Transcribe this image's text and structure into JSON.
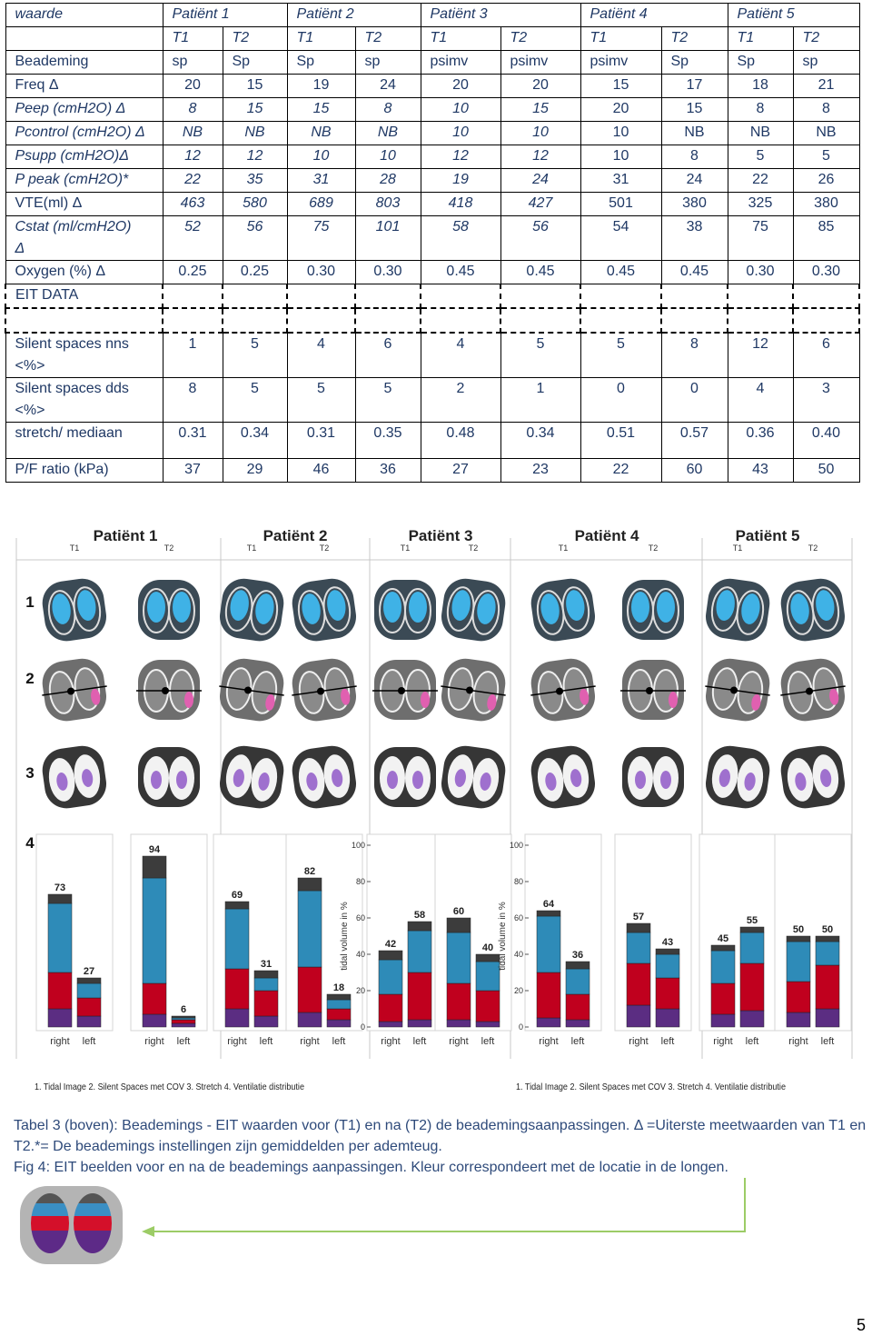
{
  "table": {
    "header": [
      "waarde",
      "Patiënt 1",
      "Patiënt 2",
      "Patiënt 3",
      "Patiënt 4",
      "Patiënt 5"
    ],
    "subheader": [
      "T1",
      "T2",
      "T1",
      "T2",
      "T1",
      "T2",
      "T1",
      "T2",
      "T1",
      "T2"
    ],
    "rows": [
      [
        "Beademing",
        "sp",
        "Sp",
        "Sp",
        "sp",
        "psimv",
        "psimv",
        "psimv",
        "Sp",
        "Sp",
        "sp"
      ],
      [
        "Freq  Δ",
        "20",
        "15",
        "19",
        "24",
        "20",
        "20",
        "15",
        "17",
        "18",
        "21"
      ],
      [
        "Peep (cmH2O)  Δ",
        "8",
        "15",
        "15",
        "8",
        "10",
        "15",
        "20",
        "15",
        "8",
        "8"
      ],
      [
        "Pcontrol (cmH2O) Δ",
        "NB",
        "NB",
        "NB",
        "NB",
        "10",
        "10",
        "10",
        "NB",
        "NB",
        "NB"
      ],
      [
        "Psupp (cmH2O)Δ",
        "12",
        "12",
        "10",
        "10",
        "12",
        "12",
        "10",
        "8",
        "5",
        "5"
      ],
      [
        "P peak (cmH2O)*",
        "22",
        "35",
        "31",
        "28",
        "19",
        "24",
        "31",
        "24",
        "22",
        "26"
      ],
      [
        "VTE(ml)  Δ",
        "463",
        "580",
        "689",
        "803",
        "418",
        "427",
        "501",
        "380",
        "325",
        "380"
      ],
      [
        "Cstat (ml/cmH2O) Δ",
        "52",
        "56",
        "75",
        "101",
        "58",
        "56",
        "54",
        "38",
        "75",
        "85"
      ],
      [
        "Oxygen (%)  Δ",
        "0.25",
        "0.25",
        "0.30",
        "0.30",
        "0.45",
        "0.45",
        "0.45",
        "0.45",
        "0.30",
        "0.30"
      ],
      [
        "EIT DATA"
      ],
      [
        "Silent spaces nns <%>",
        "1",
        "5",
        "4",
        "6",
        "4",
        "5",
        "5",
        "8",
        "12",
        "6"
      ],
      [
        "Silent spaces dds <%>",
        "8",
        "5",
        "5",
        "5",
        "2",
        "1",
        "0",
        "0",
        "4",
        "3"
      ],
      [
        "stretch/ mediaan",
        "0.31",
        "0.34",
        "0.31",
        "0.35",
        "0.48",
        "0.34",
        "0.51",
        "0.57",
        "0.36",
        "0.40"
      ],
      [
        "P/F ratio (kPa)",
        "37",
        "29",
        "46",
        "36",
        "27",
        "23",
        "22",
        "60",
        "43",
        "50"
      ]
    ]
  },
  "figure": {
    "patients": [
      "Patiënt 1",
      "Patiënt 2",
      "Patiënt 3",
      "Patiënt 4",
      "Patiënt 5"
    ],
    "times": [
      "T1",
      "T2"
    ],
    "row_labels": [
      "1",
      "2",
      "3",
      "4"
    ],
    "chart": {
      "ylabel": "tidal volume in %",
      "ylim": [
        0,
        100
      ],
      "yticks": [
        0,
        20,
        40,
        60,
        80,
        100
      ],
      "sides": [
        "right",
        "left"
      ],
      "segment_colors": [
        "#5b2d82",
        "#c0001e",
        "#2e8bb8",
        "#3c3c3c"
      ],
      "groups": [
        {
          "bars": [
            {
              "label": 73,
              "segments": [
                10,
                20,
                38,
                5
              ]
            },
            {
              "label": 27,
              "segments": [
                6,
                10,
                8,
                3
              ]
            }
          ]
        },
        {
          "bars": [
            {
              "label": 94,
              "segments": [
                7,
                17,
                58,
                12
              ]
            },
            {
              "label": 6,
              "segments": [
                2,
                2,
                1,
                1
              ]
            }
          ]
        },
        {
          "bars": [
            {
              "label": 69,
              "segments": [
                10,
                22,
                33,
                4
              ]
            },
            {
              "label": 31,
              "segments": [
                6,
                14,
                7,
                4
              ]
            }
          ]
        },
        {
          "bars": [
            {
              "label": 82,
              "segments": [
                8,
                25,
                42,
                7
              ]
            },
            {
              "label": 18,
              "segments": [
                4,
                6,
                5,
                3
              ]
            }
          ]
        },
        {
          "bars": [
            {
              "label": 42,
              "segments": [
                3,
                15,
                19,
                5
              ]
            },
            {
              "label": 58,
              "segments": [
                4,
                26,
                23,
                5
              ]
            }
          ]
        },
        {
          "bars": [
            {
              "label": 60,
              "segments": [
                4,
                20,
                28,
                8
              ]
            },
            {
              "label": 40,
              "segments": [
                3,
                17,
                16,
                4
              ]
            }
          ]
        },
        {
          "bars": [
            {
              "label": 64,
              "segments": [
                5,
                25,
                31,
                3
              ]
            },
            {
              "label": 36,
              "segments": [
                4,
                14,
                14,
                4
              ]
            }
          ]
        },
        {
          "bars": [
            {
              "label": 57,
              "segments": [
                12,
                23,
                17,
                5
              ]
            },
            {
              "label": 43,
              "segments": [
                10,
                17,
                13,
                3
              ]
            }
          ]
        },
        {
          "bars": [
            {
              "label": 45,
              "segments": [
                7,
                17,
                18,
                3
              ]
            },
            {
              "label": 55,
              "segments": [
                9,
                26,
                17,
                3
              ]
            }
          ]
        },
        {
          "bars": [
            {
              "label": 50,
              "segments": [
                8,
                17,
                22,
                3
              ]
            },
            {
              "label": 50,
              "segments": [
                10,
                24,
                13,
                3
              ]
            }
          ]
        }
      ]
    },
    "legend": "1. Tidal Image 2. Silent Spaces met COV 3. Stretch 4. Ventilatie distributie"
  },
  "caption": {
    "table": "Tabel 3 (boven): Beademings - EIT waarden voor (T1) en na (T2) de beademingsaanpassingen. Δ =Uiterste meetwaarden van T1 en T2.*= De beademings instellingen zijn gemiddelden per ademteug.",
    "figure": "Fig 4: EIT beelden voor en na de beademings aanpassingen. Kleur correspondeert met de locatie in de longen."
  },
  "page_number": "5"
}
